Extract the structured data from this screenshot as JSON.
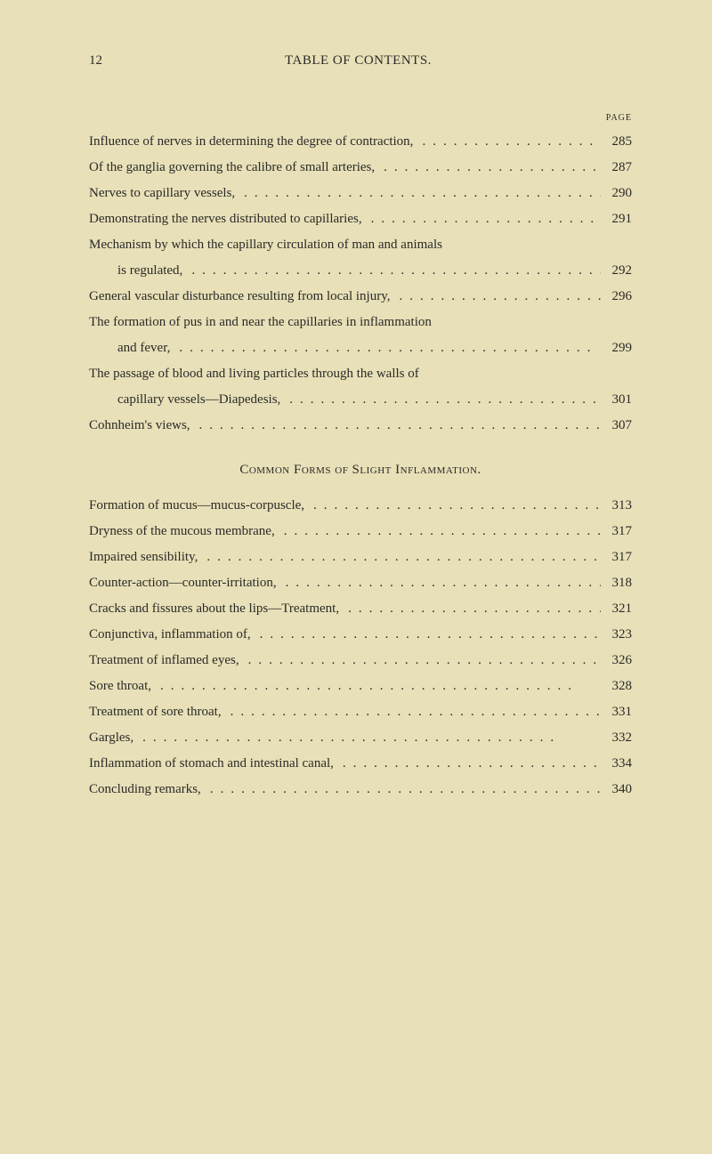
{
  "pageNumber": "12",
  "headerTitle": "TABLE OF CONTENTS.",
  "pageLabel": "PAGE",
  "sectionTitle": "Common Forms of Slight Inflammation.",
  "entries1": [
    {
      "text": "Influence of nerves in determining the degree of contraction,",
      "page": "285",
      "indent": false
    },
    {
      "text": "Of the ganglia governing the calibre of small arteries,",
      "page": "287",
      "indent": false
    },
    {
      "text": "Nerves to capillary vessels,",
      "page": "290",
      "indent": false
    },
    {
      "text": "Demonstrating the nerves distributed to capillaries,",
      "page": "291",
      "indent": false
    },
    {
      "text": "Mechanism by which the capillary circulation of man and animals",
      "page": "",
      "indent": false,
      "noDots": true
    },
    {
      "text": "is regulated,",
      "page": "292",
      "indent": true
    },
    {
      "text": "General vascular disturbance resulting from local injury,",
      "page": "296",
      "indent": false
    },
    {
      "text": "The formation of pus in and near the capillaries in inflammation",
      "page": "",
      "indent": false,
      "noDots": true
    },
    {
      "text": "and fever,",
      "page": "299",
      "indent": true
    },
    {
      "text": "The passage of blood and living particles through the walls of",
      "page": "",
      "indent": false,
      "noDots": true
    },
    {
      "text": "capillary vessels—Diapedesis,",
      "page": "301",
      "indent": true
    },
    {
      "text": "Cohnheim's views,",
      "page": "307",
      "indent": false
    }
  ],
  "entries2": [
    {
      "text": "Formation of mucus—mucus-corpuscle,",
      "page": "313",
      "indent": false
    },
    {
      "text": "Dryness of the mucous membrane,",
      "page": "317",
      "indent": false
    },
    {
      "text": "Impaired sensibility,",
      "page": "317",
      "indent": false
    },
    {
      "text": "Counter-action—counter-irritation,",
      "page": "318",
      "indent": false
    },
    {
      "text": "Cracks and fissures about the lips—Treatment,",
      "page": "321",
      "indent": false
    },
    {
      "text": "Conjunctiva, inflammation of,",
      "page": "323",
      "indent": false
    },
    {
      "text": "Treatment of inflamed eyes,",
      "page": "326",
      "indent": false
    },
    {
      "text": "Sore throat,",
      "page": "328",
      "indent": false
    },
    {
      "text": "Treatment of sore throat,",
      "page": "331",
      "indent": false
    },
    {
      "text": "Gargles,",
      "page": "332",
      "indent": false
    },
    {
      "text": "Inflammation of stomach and intestinal canal,",
      "page": "334",
      "indent": false
    },
    {
      "text": "Concluding remarks,",
      "page": "340",
      "indent": false
    }
  ]
}
